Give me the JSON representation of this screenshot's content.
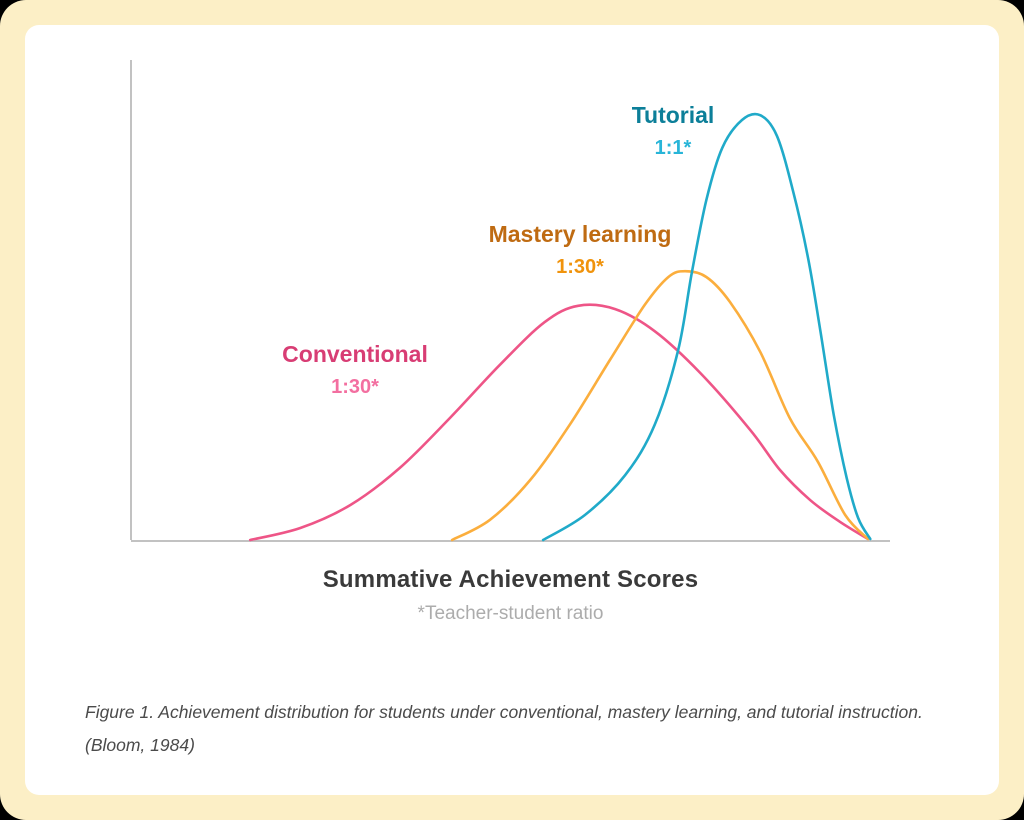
{
  "figure": {
    "background_color": "#FCEFC6",
    "panel_color": "#FFFFFF"
  },
  "chart_data": {
    "type": "line",
    "title": "",
    "xlabel": "Summative Achievement Scores",
    "ylabel": "",
    "footnote": "*Teacher-student ratio",
    "axis_color": "#C2C2C2",
    "grid": false,
    "legend_position": "inline-labels-above-curves",
    "x_axis_ticks": [],
    "y_axis_ticks": [],
    "description": "Three overlapping achievement score distributions; x in normalized 0-1 axis units, y as fraction of plot height above baseline",
    "series": [
      {
        "name": "Conventional",
        "ratio": "1:30*",
        "color": "#EE5587",
        "label_color": "#D83D74",
        "ratio_color": "#F36FA0",
        "peak_x": 0.59,
        "peak_height": 0.49,
        "points": [
          [
            0.157,
            0.0
          ],
          [
            0.223,
            0.025
          ],
          [
            0.289,
            0.073
          ],
          [
            0.354,
            0.15
          ],
          [
            0.42,
            0.254
          ],
          [
            0.486,
            0.365
          ],
          [
            0.545,
            0.454
          ],
          [
            0.589,
            0.488
          ],
          [
            0.638,
            0.481
          ],
          [
            0.69,
            0.435
          ],
          [
            0.75,
            0.348
          ],
          [
            0.816,
            0.229
          ],
          [
            0.855,
            0.146
          ],
          [
            0.895,
            0.083
          ],
          [
            0.934,
            0.038
          ],
          [
            0.971,
            0.002
          ]
        ]
      },
      {
        "name": "Mastery learning",
        "ratio": "1:30*",
        "color": "#FBAE3D",
        "label_color": "#BF6B12",
        "ratio_color": "#F0930C",
        "peak_x": 0.73,
        "peak_height": 0.56,
        "points": [
          [
            0.423,
            0.0
          ],
          [
            0.473,
            0.042
          ],
          [
            0.526,
            0.125
          ],
          [
            0.578,
            0.24
          ],
          [
            0.631,
            0.375
          ],
          [
            0.677,
            0.49
          ],
          [
            0.708,
            0.548
          ],
          [
            0.73,
            0.56
          ],
          [
            0.758,
            0.548
          ],
          [
            0.789,
            0.496
          ],
          [
            0.829,
            0.392
          ],
          [
            0.868,
            0.254
          ],
          [
            0.905,
            0.163
          ],
          [
            0.941,
            0.052
          ],
          [
            0.971,
            0.002
          ]
        ]
      },
      {
        "name": "Tutorial",
        "ratio": "1:1*",
        "color": "#20AAC9",
        "label_color": "#0C7F99",
        "ratio_color": "#28B5D8",
        "peak_x": 0.83,
        "peak_height": 0.885,
        "points": [
          [
            0.543,
            0.0
          ],
          [
            0.598,
            0.052
          ],
          [
            0.651,
            0.135
          ],
          [
            0.69,
            0.24
          ],
          [
            0.721,
            0.396
          ],
          [
            0.739,
            0.558
          ],
          [
            0.758,
            0.708
          ],
          [
            0.779,
            0.817
          ],
          [
            0.805,
            0.875
          ],
          [
            0.829,
            0.885
          ],
          [
            0.851,
            0.842
          ],
          [
            0.872,
            0.729
          ],
          [
            0.892,
            0.588
          ],
          [
            0.908,
            0.438
          ],
          [
            0.926,
            0.26
          ],
          [
            0.943,
            0.129
          ],
          [
            0.958,
            0.046
          ],
          [
            0.974,
            0.002
          ]
        ]
      }
    ]
  },
  "caption": {
    "line1": "Figure 1. Achievement distribution for students under conventional, mastery learning, and tutorial instruction.",
    "line2": "(Bloom, 1984)"
  }
}
